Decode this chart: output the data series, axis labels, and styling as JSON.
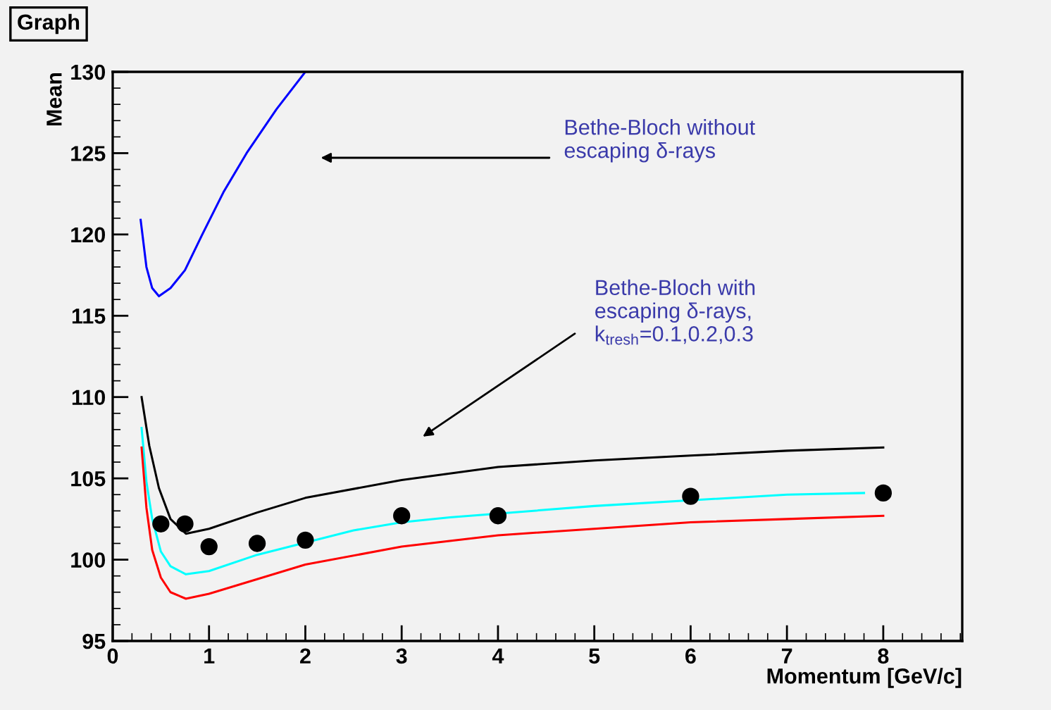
{
  "chart_data": {
    "type": "line",
    "title": "Graph",
    "xlabel": "Momentum [GeV/c]",
    "ylabel": "Mean",
    "xlim": [
      0,
      8.82
    ],
    "ylim": [
      95,
      130
    ],
    "xticks": [
      0,
      1,
      2,
      3,
      4,
      5,
      6,
      7,
      8
    ],
    "yticks": [
      95,
      100,
      105,
      110,
      115,
      120,
      125,
      130
    ],
    "grid": false,
    "legend": false,
    "marker": "none",
    "line_style": "solid",
    "series": [
      {
        "color": "#0000ff",
        "x": [
          0.29,
          0.35,
          0.41,
          0.48,
          0.6,
          0.75,
          0.93,
          1.15,
          1.39,
          1.7,
          2.0
        ],
        "values": [
          120.9,
          118.0,
          116.7,
          116.2,
          116.7,
          117.8,
          120.0,
          122.6,
          125.0,
          127.7,
          130.0
        ]
      },
      {
        "color": "#000000",
        "x": [
          0.3,
          0.38,
          0.48,
          0.6,
          0.76,
          1.0,
          1.5,
          2.0,
          3.0,
          4.0,
          5.0,
          6.0,
          7.0,
          8.0
        ],
        "values": [
          110.0,
          107.0,
          104.4,
          102.5,
          101.6,
          101.9,
          102.9,
          103.8,
          104.9,
          105.7,
          106.1,
          106.4,
          106.7,
          106.9
        ]
      },
      {
        "color": "#00ffff",
        "x": [
          0.3,
          0.35,
          0.41,
          0.5,
          0.6,
          0.76,
          1.0,
          1.5,
          2.5,
          3.0,
          3.5,
          5.0,
          7.0,
          7.8
        ],
        "values": [
          108.1,
          104.8,
          102.5,
          100.5,
          99.6,
          99.1,
          99.3,
          100.3,
          101.8,
          102.3,
          102.6,
          103.3,
          104.0,
          104.1
        ]
      },
      {
        "color": "#ff0000",
        "x": [
          0.3,
          0.35,
          0.41,
          0.5,
          0.6,
          0.76,
          1.0,
          1.5,
          2.0,
          3.0,
          4.0,
          5.0,
          6.0,
          7.0,
          8.0
        ],
        "values": [
          106.9,
          103.2,
          100.6,
          98.9,
          98.0,
          97.6,
          97.9,
          98.8,
          99.7,
          100.8,
          101.5,
          101.9,
          102.3,
          102.5,
          102.7
        ]
      },
      {
        "type": "scatter",
        "marker": "circle",
        "color": "#000000",
        "x": [
          0.5,
          0.75,
          1,
          1.5,
          2,
          3,
          4,
          6,
          8
        ],
        "values": [
          102.2,
          102.2,
          100.8,
          101.0,
          101.2,
          102.7,
          102.7,
          103.9,
          104.1
        ]
      }
    ],
    "annotations": [
      "Bethe-Bloch without\nescaping δ-rays",
      "Bethe-Bloch with\nescaping δ-rays,\nk$_{tresh}$=0.1,0.2,0.3"
    ]
  }
}
